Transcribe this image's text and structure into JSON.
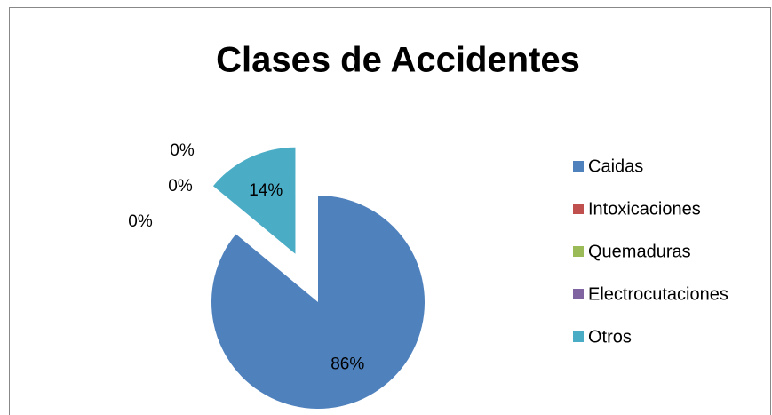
{
  "chart_data": {
    "type": "pie",
    "title": "Clases de Accidentes",
    "categories": [
      "Caidas",
      "Intoxicaciones",
      "Quemaduras",
      "Electrocutaciones",
      "Otros"
    ],
    "values": [
      86,
      0,
      0,
      0,
      14
    ],
    "value_labels": [
      "86%",
      "0%",
      "0%",
      "0%",
      "14%"
    ],
    "colors": [
      "#4f81bd",
      "#c0504d",
      "#9bbb59",
      "#8064a2",
      "#4bacc6"
    ],
    "legend": "right"
  }
}
